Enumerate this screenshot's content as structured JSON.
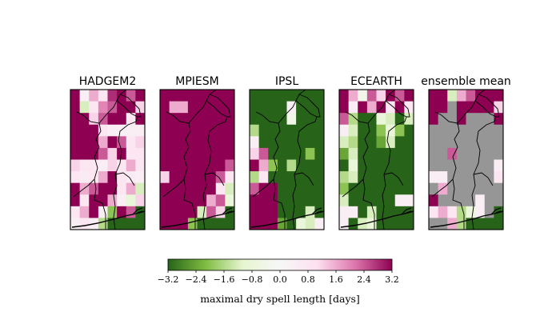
{
  "chart_data": {
    "type": "heatmap",
    "panels": [
      {
        "title": "HADGEM2",
        "cells": [
          [
            3.2,
            0.4,
            1.6,
            0.8,
            2.8,
            3.2,
            2.4,
            3.2
          ],
          [
            3.2,
            -1.2,
            0.8,
            2.0,
            2.4,
            3.2,
            3.2,
            1.2
          ],
          [
            3.2,
            3.2,
            1.2,
            2.4,
            3.2,
            3.2,
            0.8,
            3.2
          ],
          [
            3.2,
            3.2,
            3.2,
            0.8,
            0.4,
            0.4,
            0.4,
            0.4
          ],
          [
            3.2,
            3.2,
            3.2,
            1.6,
            3.2,
            2.4,
            0.8,
            1.2
          ],
          [
            3.2,
            3.2,
            3.2,
            2.4,
            1.2,
            3.2,
            0.8,
            0.8
          ],
          [
            1.2,
            0.8,
            0.8,
            0.4,
            1.2,
            0.8,
            1.6,
            0.8
          ],
          [
            0.8,
            0.6,
            0.8,
            1.6,
            3.2,
            0.8,
            0.6,
            0.4
          ],
          [
            3.2,
            1.6,
            2.4,
            3.2,
            3.2,
            0.8,
            1.6,
            -1.2
          ],
          [
            3.2,
            0.8,
            3.2,
            3.2,
            1.6,
            0.4,
            -0.8,
            1.2
          ],
          [
            0.8,
            1.6,
            3.2,
            0.4,
            -2.0,
            3.2,
            2.4,
            -3.2
          ],
          [
            0.4,
            0.8,
            0.4,
            -1.6,
            -3.2,
            -3.2,
            -3.2,
            -3.2
          ]
        ]
      },
      {
        "title": "MPIESM",
        "cells": [
          [
            3.2,
            3.2,
            3.2,
            3.2,
            3.2,
            3.2,
            3.2,
            3.2
          ],
          [
            3.2,
            1.6,
            1.6,
            3.2,
            3.2,
            3.2,
            3.2,
            3.2
          ],
          [
            3.2,
            3.2,
            3.2,
            3.2,
            3.2,
            3.2,
            3.2,
            3.2
          ],
          [
            3.2,
            3.2,
            3.2,
            3.2,
            3.2,
            3.2,
            3.2,
            3.2
          ],
          [
            3.2,
            3.2,
            3.2,
            3.2,
            3.2,
            3.2,
            3.2,
            3.2
          ],
          [
            3.2,
            3.2,
            3.2,
            3.2,
            3.2,
            3.2,
            3.2,
            3.2
          ],
          [
            3.2,
            3.2,
            3.2,
            3.2,
            3.2,
            3.2,
            3.2,
            2.4
          ],
          [
            1.2,
            3.2,
            3.2,
            3.2,
            3.2,
            3.2,
            2.4,
            0.8
          ],
          [
            3.2,
            3.2,
            3.2,
            3.2,
            3.2,
            3.2,
            0.8,
            -1.2
          ],
          [
            3.2,
            3.2,
            3.2,
            3.2,
            3.2,
            1.6,
            2.4,
            -0.8
          ],
          [
            3.2,
            3.2,
            3.2,
            3.2,
            -1.2,
            2.4,
            1.2,
            -3.2
          ],
          [
            3.2,
            3.2,
            3.2,
            -2.0,
            -3.2,
            -3.2,
            -3.2,
            -3.2
          ]
        ]
      },
      {
        "title": "IPSL",
        "cells": [
          [
            -3.2,
            -3.2,
            -3.2,
            -3.2,
            -3.2,
            -3.2,
            -3.2,
            -3.2
          ],
          [
            -3.2,
            -3.2,
            -3.2,
            -3.2,
            0.4,
            -3.2,
            -3.2,
            -3.2
          ],
          [
            -3.2,
            -3.2,
            -3.2,
            -3.2,
            -0.4,
            -3.2,
            -3.2,
            -3.2
          ],
          [
            -1.6,
            -3.2,
            -3.2,
            -3.2,
            -3.2,
            -3.2,
            -3.2,
            -3.2
          ],
          [
            0.4,
            -3.2,
            -3.2,
            -3.2,
            -3.2,
            -3.2,
            -3.2,
            -3.2
          ],
          [
            1.2,
            2.4,
            -3.2,
            -3.2,
            -3.2,
            -3.2,
            -2.0,
            -3.2
          ],
          [
            3.2,
            1.6,
            -2.0,
            -3.2,
            -1.6,
            -3.2,
            -3.2,
            -3.2
          ],
          [
            -1.6,
            0.8,
            -3.2,
            -3.2,
            -3.2,
            -3.2,
            -3.2,
            -3.2
          ],
          [
            2.4,
            3.2,
            3.2,
            -3.2,
            -3.2,
            -3.2,
            -3.2,
            -3.2
          ],
          [
            3.2,
            3.2,
            3.2,
            -3.2,
            -3.2,
            -3.2,
            -3.2,
            -3.2
          ],
          [
            3.2,
            3.2,
            3.2,
            -3.2,
            -3.2,
            -3.2,
            -1.2,
            -3.2
          ],
          [
            3.2,
            3.2,
            3.2,
            -2.4,
            -3.2,
            -0.8,
            -1.2,
            0.4
          ]
        ]
      },
      {
        "title": "ECEARTH",
        "cells": [
          [
            3.2,
            1.6,
            -0.4,
            2.4,
            1.2,
            3.2,
            2.4,
            3.2
          ],
          [
            3.2,
            0.4,
            3.2,
            1.6,
            3.2,
            0.8,
            3.2,
            0.8
          ],
          [
            2.4,
            -1.6,
            -3.2,
            -3.2,
            -0.8,
            -1.2,
            -3.2,
            -1.2
          ],
          [
            0.4,
            -1.2,
            -3.2,
            -3.2,
            -2.0,
            -0.8,
            -2.0,
            -3.2
          ],
          [
            -1.2,
            -1.6,
            -3.2,
            -3.2,
            -2.4,
            -1.2,
            -3.2,
            -3.2
          ],
          [
            -2.4,
            -1.2,
            -3.2,
            -3.2,
            -3.2,
            -3.2,
            -3.2,
            -3.2
          ],
          [
            -3.2,
            -0.8,
            -3.2,
            -3.2,
            -3.2,
            -3.2,
            -3.2,
            -3.2
          ],
          [
            -1.6,
            -1.2,
            -3.2,
            -3.2,
            -3.2,
            -3.2,
            -3.2,
            -3.2
          ],
          [
            -2.0,
            -3.2,
            -3.2,
            -3.2,
            -3.2,
            -3.2,
            -3.2,
            -3.2
          ],
          [
            -1.2,
            -3.2,
            -3.2,
            -3.2,
            -3.2,
            -3.2,
            0.4,
            0.4
          ],
          [
            0.4,
            0.4,
            -3.2,
            -1.2,
            -3.2,
            -3.2,
            -3.2,
            -3.2
          ],
          [
            0.4,
            -3.2,
            -1.2,
            -0.8,
            -3.2,
            -3.2,
            -3.2,
            -3.2
          ]
        ]
      },
      {
        "title": "ensemble mean",
        "cells": [
          [
            3.2,
            3.2,
            -1.2,
            1.6,
            2.4,
            3.2,
            3.2,
            3.2
          ],
          [
            3.2,
            3.2,
            null,
            3.2,
            3.2,
            3.2,
            3.2,
            1.2
          ],
          [
            3.2,
            null,
            null,
            3.2,
            null,
            null,
            null,
            3.2
          ],
          [
            null,
            null,
            null,
            null,
            null,
            null,
            null,
            null
          ],
          [
            null,
            null,
            null,
            null,
            null,
            null,
            null,
            null
          ],
          [
            null,
            null,
            2.4,
            null,
            null,
            null,
            null,
            null
          ],
          [
            null,
            null,
            null,
            null,
            null,
            null,
            null,
            0.4
          ],
          [
            0.4,
            0.4,
            null,
            null,
            null,
            null,
            null,
            0.8
          ],
          [
            null,
            1.6,
            null,
            null,
            null,
            null,
            null,
            null
          ],
          [
            3.2,
            null,
            null,
            null,
            null,
            0.4,
            null,
            null
          ],
          [
            0.8,
            1.6,
            0.8,
            -1.6,
            -0.8,
            0.4,
            null,
            -3.2
          ],
          [
            null,
            null,
            1.6,
            -1.6,
            -3.2,
            -3.2,
            -3.2,
            -3.2
          ]
        ]
      }
    ],
    "colormap": {
      "name": "PiYG-reversed",
      "stops": [
        "#276419",
        "#7fbc41",
        "#e6f5d0",
        "#f7f7f7",
        "#fde0ef",
        "#de77ae",
        "#8e0152"
      ],
      "masked_color": "#969696"
    },
    "colorbar": {
      "vmin": -3.2,
      "vmax": 3.2,
      "ticks": [
        "−3.2",
        "−2.4",
        "−1.6",
        "−0.8",
        "0.0",
        "0.8",
        "1.6",
        "2.4",
        "3.2"
      ],
      "tick_values": [
        -3.2,
        -2.4,
        -1.6,
        -0.8,
        0.0,
        0.8,
        1.6,
        2.4,
        3.2
      ],
      "label": "maximal dry spell length [days]",
      "orientation": "horizontal"
    }
  }
}
